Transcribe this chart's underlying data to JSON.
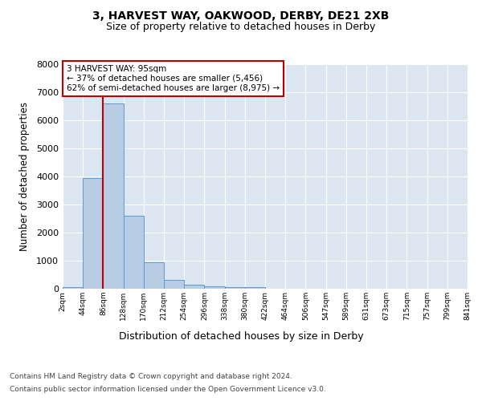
{
  "title_line1": "3, HARVEST WAY, OAKWOOD, DERBY, DE21 2XB",
  "title_line2": "Size of property relative to detached houses in Derby",
  "xlabel": "Distribution of detached houses by size in Derby",
  "ylabel": "Number of detached properties",
  "bar_color": "#b8cce4",
  "bar_edge_color": "#5b9bd5",
  "plot_bg_color": "#dce6f1",
  "grid_color": "#ffffff",
  "property_line_color": "#c00000",
  "annotation_box_color": "#c00000",
  "annotation_text": "3 HARVEST WAY: 95sqm\n← 37% of detached houses are smaller (5,456)\n62% of semi-detached houses are larger (8,975) →",
  "property_size_idx": 2,
  "ylim": [
    0,
    8000
  ],
  "yticks": [
    0,
    1000,
    2000,
    3000,
    4000,
    5000,
    6000,
    7000,
    8000
  ],
  "num_bins": 20,
  "bin_values": [
    60,
    3950,
    6600,
    2600,
    950,
    310,
    130,
    95,
    60,
    55,
    0,
    0,
    0,
    0,
    0,
    0,
    0,
    0,
    0,
    0
  ],
  "tick_labels": [
    "2sqm",
    "44sqm",
    "86sqm",
    "128sqm",
    "170sqm",
    "212sqm",
    "254sqm",
    "296sqm",
    "338sqm",
    "380sqm",
    "422sqm",
    "464sqm",
    "506sqm",
    "547sqm",
    "589sqm",
    "631sqm",
    "673sqm",
    "715sqm",
    "757sqm",
    "799sqm",
    "841sqm"
  ],
  "footer_line1": "Contains HM Land Registry data © Crown copyright and database right 2024.",
  "footer_line2": "Contains public sector information licensed under the Open Government Licence v3.0."
}
